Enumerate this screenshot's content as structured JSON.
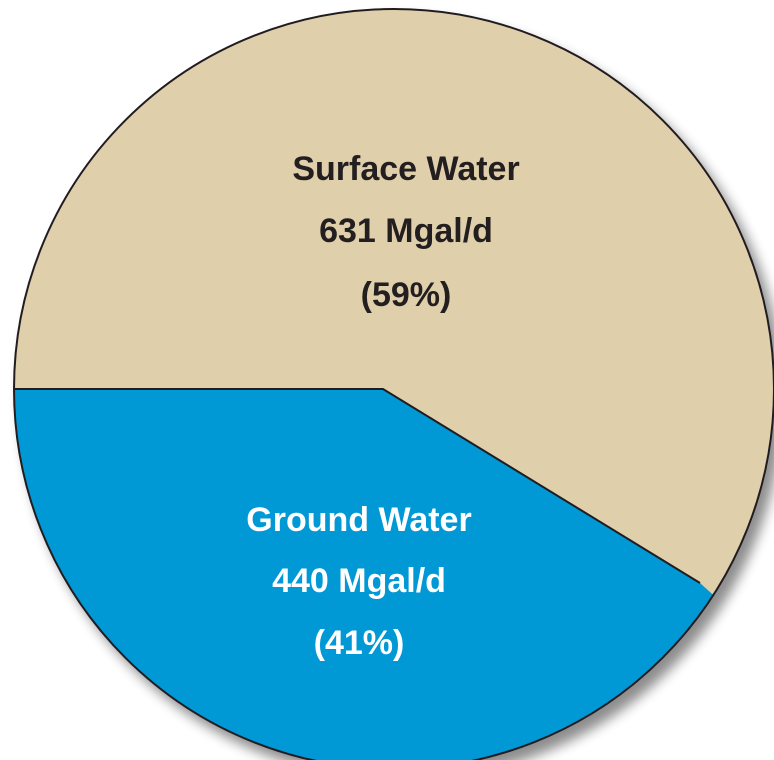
{
  "chart_data": {
    "type": "pie",
    "slices": [
      {
        "name": "Surface Water",
        "value": 631,
        "value_text": "631 Mgal/d",
        "percent_text": "(59%)",
        "color": "#dfcfaa",
        "text_color": "#231f20"
      },
      {
        "name": "Ground Water",
        "value": 440,
        "value_text": "440 Mgal/d",
        "percent_text": "(41%)",
        "color": "#0098d5",
        "text_color": "#ffffff"
      }
    ],
    "edge_color": "#231f20",
    "shadow": true
  }
}
